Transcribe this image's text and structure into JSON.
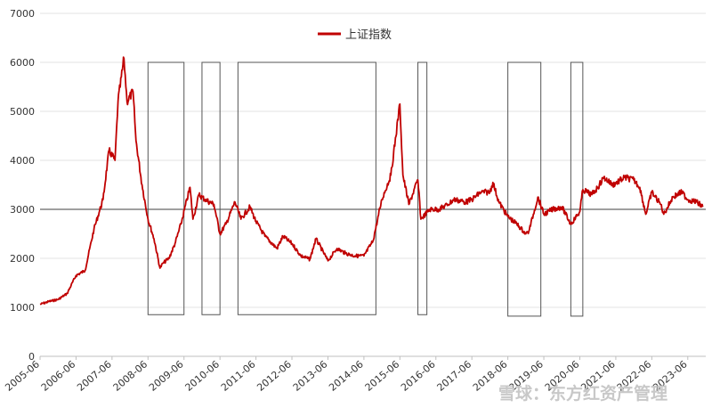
{
  "chart_data": {
    "type": "line",
    "title": "",
    "xlabel": "",
    "ylabel": "",
    "ylim": [
      0,
      7000
    ],
    "yticks": [
      0,
      1000,
      2000,
      3000,
      4000,
      5000,
      6000,
      7000
    ],
    "xticks": [
      "2005-06",
      "2006-06",
      "2007-06",
      "2008-06",
      "2009-06",
      "2010-06",
      "2011-06",
      "2012-06",
      "2013-06",
      "2014-06",
      "2015-06",
      "2016-06",
      "2017-06",
      "2018-06",
      "2019-06",
      "2020-06",
      "2021-06",
      "2022-06",
      "2023-06"
    ],
    "grid": "horizontal",
    "legend_position": "top-center",
    "reference_line": 3000,
    "series": [
      {
        "name": "上证指数",
        "color": "#c00000",
        "points": [
          [
            "2005-06",
            1060
          ],
          [
            "2005-09",
            1120
          ],
          [
            "2005-12",
            1160
          ],
          [
            "2006-03",
            1280
          ],
          [
            "2006-06",
            1650
          ],
          [
            "2006-09",
            1750
          ],
          [
            "2006-12",
            2600
          ],
          [
            "2007-03",
            3200
          ],
          [
            "2007-05",
            4200
          ],
          [
            "2007-07",
            4000
          ],
          [
            "2007-08",
            5200
          ],
          [
            "2007-10",
            6080
          ],
          [
            "2007-11",
            5200
          ],
          [
            "2008-01",
            5400
          ],
          [
            "2008-02",
            4400
          ],
          [
            "2008-04",
            3500
          ],
          [
            "2008-06",
            2800
          ],
          [
            "2008-08",
            2400
          ],
          [
            "2008-10",
            1800
          ],
          [
            "2008-11",
            1900
          ],
          [
            "2009-01",
            2000
          ],
          [
            "2009-03",
            2300
          ],
          [
            "2009-05",
            2700
          ],
          [
            "2009-08",
            3450
          ],
          [
            "2009-09",
            2800
          ],
          [
            "2009-11",
            3300
          ],
          [
            "2010-01",
            3200
          ],
          [
            "2010-04",
            3100
          ],
          [
            "2010-06",
            2500
          ],
          [
            "2010-08",
            2700
          ],
          [
            "2010-11",
            3150
          ],
          [
            "2011-01",
            2800
          ],
          [
            "2011-04",
            3050
          ],
          [
            "2011-06",
            2750
          ],
          [
            "2011-09",
            2450
          ],
          [
            "2012-01",
            2200
          ],
          [
            "2012-03",
            2450
          ],
          [
            "2012-06",
            2300
          ],
          [
            "2012-09",
            2050
          ],
          [
            "2012-12",
            1980
          ],
          [
            "2013-02",
            2400
          ],
          [
            "2013-06",
            1950
          ],
          [
            "2013-09",
            2200
          ],
          [
            "2013-12",
            2100
          ],
          [
            "2014-03",
            2050
          ],
          [
            "2014-06",
            2050
          ],
          [
            "2014-09",
            2350
          ],
          [
            "2014-12",
            3200
          ],
          [
            "2015-03",
            3700
          ],
          [
            "2015-06",
            5150
          ],
          [
            "2015-07",
            3700
          ],
          [
            "2015-09",
            3100
          ],
          [
            "2015-12",
            3600
          ],
          [
            "2016-01",
            2800
          ],
          [
            "2016-04",
            3000
          ],
          [
            "2016-07",
            3000
          ],
          [
            "2016-10",
            3100
          ],
          [
            "2016-12",
            3200
          ],
          [
            "2017-04",
            3150
          ],
          [
            "2017-06",
            3200
          ],
          [
            "2017-09",
            3350
          ],
          [
            "2017-12",
            3350
          ],
          [
            "2018-01",
            3550
          ],
          [
            "2018-03",
            3150
          ],
          [
            "2018-06",
            2850
          ],
          [
            "2018-09",
            2700
          ],
          [
            "2018-12",
            2500
          ],
          [
            "2019-01",
            2550
          ],
          [
            "2019-04",
            3250
          ],
          [
            "2019-06",
            2900
          ],
          [
            "2019-09",
            3000
          ],
          [
            "2019-12",
            3050
          ],
          [
            "2020-03",
            2700
          ],
          [
            "2020-06",
            2950
          ],
          [
            "2020-07",
            3400
          ],
          [
            "2020-10",
            3300
          ],
          [
            "2020-12",
            3450
          ],
          [
            "2021-02",
            3650
          ],
          [
            "2021-05",
            3500
          ],
          [
            "2021-09",
            3650
          ],
          [
            "2021-12",
            3600
          ],
          [
            "2022-02",
            3450
          ],
          [
            "2022-04",
            2900
          ],
          [
            "2022-06",
            3350
          ],
          [
            "2022-09",
            3100
          ],
          [
            "2022-10",
            2900
          ],
          [
            "2023-01",
            3250
          ],
          [
            "2023-04",
            3350
          ],
          [
            "2023-06",
            3200
          ],
          [
            "2023-09",
            3150
          ],
          [
            "2023-11",
            3050
          ]
        ]
      }
    ],
    "annotation_boxes": [
      {
        "x_start": "2008-06",
        "x_end": "2009-06",
        "y_min": 850,
        "y_max": 6000
      },
      {
        "x_start": "2009-12",
        "x_end": "2010-06",
        "y_min": 850,
        "y_max": 6000
      },
      {
        "x_start": "2010-12",
        "x_end": "2014-10",
        "y_min": 850,
        "y_max": 6000
      },
      {
        "x_start": "2015-12",
        "x_end": "2016-03",
        "y_min": 850,
        "y_max": 6000
      },
      {
        "x_start": "2018-06",
        "x_end": "2019-05",
        "y_min": 820,
        "y_max": 6000
      },
      {
        "x_start": "2020-03",
        "x_end": "2020-07",
        "y_min": 820,
        "y_max": 6000
      }
    ]
  },
  "watermark": {
    "text": "雪球：东方红资产管理",
    "color": "#c8c8c8"
  }
}
